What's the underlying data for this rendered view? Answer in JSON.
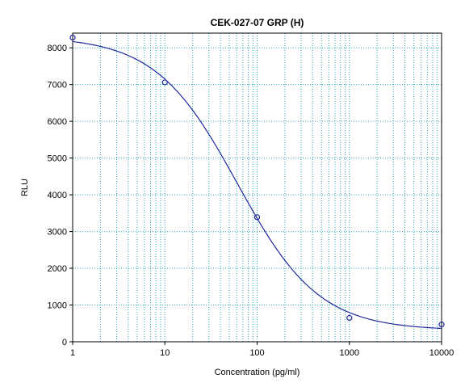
{
  "chart_data": {
    "type": "scatter",
    "title": "CEK-027-07 GRP (H)",
    "xlabel": "Concentration (pg/ml)",
    "ylabel": "RLU",
    "xscale": "log",
    "xlim": [
      1,
      10000
    ],
    "ylim": [
      0,
      8400
    ],
    "x_ticks": [
      1,
      10,
      100,
      1000,
      10000
    ],
    "x_tick_labels": [
      "1",
      "10",
      "100",
      "1000",
      "10000"
    ],
    "y_ticks": [
      0,
      1000,
      2000,
      3000,
      4000,
      5000,
      6000,
      7000,
      8000
    ],
    "y_tick_labels": [
      "0",
      "1000",
      "2000",
      "3000",
      "4000",
      "5000",
      "6000",
      "7000",
      "8000"
    ],
    "grid": true,
    "legend": "none",
    "series": [
      {
        "marker": "open-circle",
        "x": [
          1,
          10,
          100,
          1000,
          10000
        ],
        "y": [
          8280,
          7060,
          3390,
          650,
          470
        ]
      }
    ],
    "fit_curve": {
      "model": "4PL",
      "top": 8310,
      "bottom": 310,
      "ec50": 61,
      "hill": 0.98
    },
    "colors": {
      "curve": "#1f2a9c",
      "markers": "#1f2a9c",
      "grid": "#2aa7b8",
      "axes": "#000000"
    }
  }
}
